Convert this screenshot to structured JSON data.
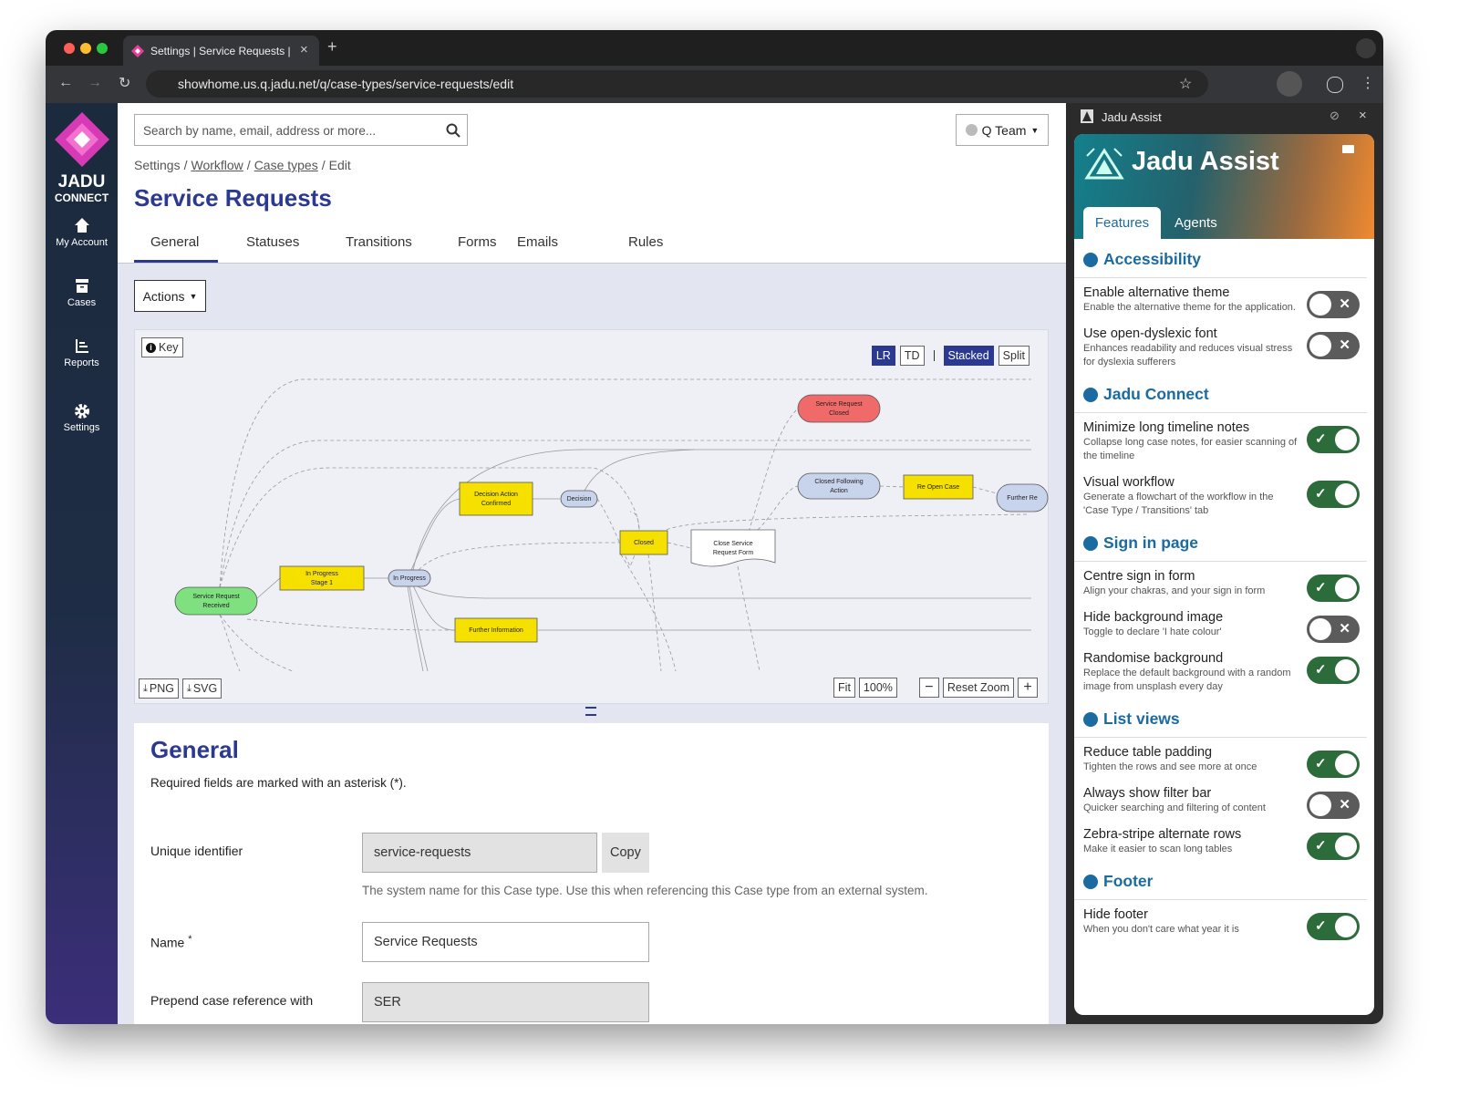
{
  "browser": {
    "tab_title": "Settings | Service Requests |",
    "url": "showhome.us.q.jadu.net/q/case-types/service-requests/edit"
  },
  "sidebar": {
    "logo_top": "JADU",
    "logo_bottom": "CONNECT",
    "nav": [
      "My Account",
      "Cases",
      "Reports",
      "Settings"
    ]
  },
  "header": {
    "search_placeholder": "Search by name, email, address or more...",
    "team": "Q Team"
  },
  "breadcrumb": [
    "Settings",
    "Workflow",
    "Case types",
    "Edit"
  ],
  "page_title": "Service Requests",
  "tabs": [
    "General",
    "Statuses",
    "Transitions",
    "Forms",
    "Emails",
    "Rules"
  ],
  "actions": "Actions",
  "workflow": {
    "key": "Key",
    "layout_buttons": [
      {
        "label": "LR",
        "active": true
      },
      {
        "label": "TD",
        "active": false
      },
      {
        "label": "Stacked",
        "active": true
      },
      {
        "label": "Split",
        "active": false
      }
    ],
    "nodes": [
      "Service Request Received",
      "In Progress Stage 1",
      "In Progress",
      "Decision Action Confirmed",
      "Decision",
      "Closed",
      "Close Service Request Form",
      "Service Request Closed",
      "Closed Following Action",
      "Re Open Case",
      "Further Re",
      "Further Information"
    ],
    "export": [
      "PNG",
      "SVG"
    ],
    "fit": "Fit",
    "zoom": "100%",
    "reset": "Reset Zoom"
  },
  "form": {
    "title": "General",
    "note": "Required fields are marked with an asterisk (*).",
    "identifier": {
      "label": "Unique identifier",
      "value": "service-requests",
      "button": "Copy",
      "help": "The system name for this Case type. Use this when referencing this Case type from an external system."
    },
    "name": {
      "label": "Name",
      "required": "*",
      "value": "Service Requests"
    },
    "prepend": {
      "label": "Prepend case reference with",
      "value": "SER"
    }
  },
  "assist": {
    "panel_title": "Jadu Assist",
    "title": "Jadu Assist",
    "tabs": [
      "Features",
      "Agents"
    ],
    "sections": [
      {
        "title": "Accessibility",
        "items": [
          {
            "name": "Enable alternative theme",
            "description": "Enable the alternative theme for the application.",
            "enabled": false
          },
          {
            "name": "Use open-dyslexic font",
            "description": "Enhances readability and reduces visual stress for dyslexia sufferers",
            "enabled": false
          }
        ]
      },
      {
        "title": "Jadu Connect",
        "items": [
          {
            "name": "Minimize long timeline notes",
            "description": "Collapse long case notes, for easier scanning of the timeline",
            "enabled": true
          },
          {
            "name": "Visual workflow",
            "description": "Generate a flowchart of the workflow in the 'Case Type / Transitions' tab",
            "enabled": true
          }
        ]
      },
      {
        "title": "Sign in page",
        "items": [
          {
            "name": "Centre sign in form",
            "description": "Align your chakras, and your sign in form",
            "enabled": true
          },
          {
            "name": "Hide background image",
            "description": "Toggle to declare 'I hate colour'",
            "enabled": false
          },
          {
            "name": "Randomise background",
            "description": "Replace the default background with a random image from unsplash every day",
            "enabled": true
          }
        ]
      },
      {
        "title": "List views",
        "items": [
          {
            "name": "Reduce table padding",
            "description": "Tighten the rows and see more at once",
            "enabled": true
          },
          {
            "name": "Always show filter bar",
            "description": "Quicker searching and filtering of content",
            "enabled": false
          },
          {
            "name": "Zebra-stripe alternate rows",
            "description": "Make it easier to scan long tables",
            "enabled": true
          }
        ]
      },
      {
        "title": "Footer",
        "items": [
          {
            "name": "Hide footer",
            "description": "When you don't care what year it is",
            "enabled": true
          }
        ]
      }
    ]
  }
}
